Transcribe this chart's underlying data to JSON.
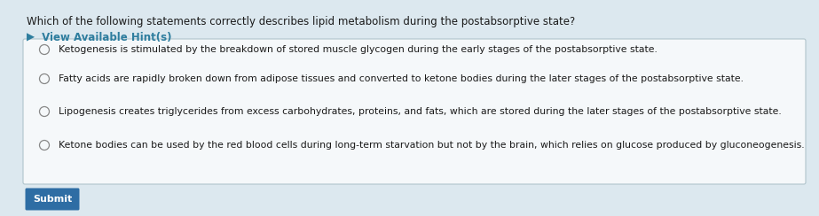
{
  "background_color": "#dce8ef",
  "question_text": "Which of the following statements correctly describes lipid metabolism during the postabsorptive state?",
  "hint_arrow": "▶",
  "hint_text": " View Available Hint(s)",
  "hint_color": "#2e7d9e",
  "options": [
    "Ketogenesis is stimulated by the breakdown of stored muscle glycogen during the early stages of the postabsorptive state.",
    "Fatty acids are rapidly broken down from adipose tissues and converted to ketone bodies during the later stages of the postabsorptive state.",
    "Lipogenesis creates triglycerides from excess carbohydrates, proteins, and fats, which are stored during the later stages of the postabsorptive state.",
    "Ketone bodies can be used by the red blood cells during long-term starvation but not by the brain, which relies on glucose produced by gluconeogenesis."
  ],
  "submit_text": "Submit",
  "submit_bg": "#2e6da4",
  "submit_text_color": "#ffffff",
  "question_fontsize": 8.5,
  "hint_fontsize": 8.5,
  "option_fontsize": 7.8,
  "submit_fontsize": 8.0,
  "text_color": "#1a1a1a",
  "circle_color": "#888888",
  "box_edge_color": "#b0c4cc",
  "box_face_color": "#f5f8fa"
}
